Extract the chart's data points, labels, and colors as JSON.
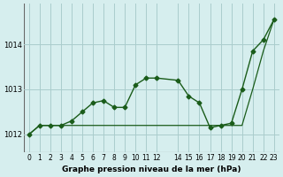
{
  "x": [
    0,
    1,
    2,
    3,
    4,
    5,
    6,
    7,
    8,
    9,
    10,
    11,
    12,
    14,
    15,
    16,
    17,
    18,
    19,
    20,
    21,
    22,
    23
  ],
  "y_main": [
    1012.0,
    1012.2,
    1012.2,
    1012.2,
    1012.3,
    1012.5,
    1012.7,
    1012.75,
    1012.6,
    1012.6,
    1013.1,
    1013.25,
    1013.25,
    1013.2,
    1012.85,
    1012.7,
    1012.15,
    1012.2,
    1012.25,
    1013.0,
    1013.85,
    1014.1,
    1014.55
  ],
  "y_linear": [
    1012.0,
    1012.2,
    1012.2,
    1012.2,
    1012.2,
    1012.2,
    1012.2,
    1012.2,
    1012.2,
    1012.2,
    1012.2,
    1012.2,
    1012.2,
    1012.2,
    1012.2,
    1012.2,
    1012.2,
    1012.2,
    1012.2,
    1012.2,
    1013.0,
    1013.85,
    1014.55
  ],
  "background_color": "#d6eeee",
  "grid_color": "#aacccc",
  "line_color": "#1a5c1a",
  "title": "Graphe pression niveau de la mer (hPa)",
  "ylabel_values": [
    1012,
    1013,
    1014
  ],
  "xlim": [
    -0.5,
    23.5
  ],
  "ylim": [
    1011.6,
    1014.9
  ],
  "xtick_positions": [
    0,
    1,
    2,
    3,
    4,
    5,
    6,
    7,
    8,
    9,
    10,
    11,
    12,
    14,
    15,
    16,
    17,
    18,
    19,
    20,
    21,
    22,
    23
  ],
  "xtick_labels": [
    "0",
    "1",
    "2",
    "3",
    "4",
    "5",
    "6",
    "7",
    "8",
    "9",
    "10",
    "11",
    "12",
    "14",
    "15",
    "16",
    "17",
    "18",
    "19",
    "20",
    "21",
    "22",
    "23"
  ]
}
